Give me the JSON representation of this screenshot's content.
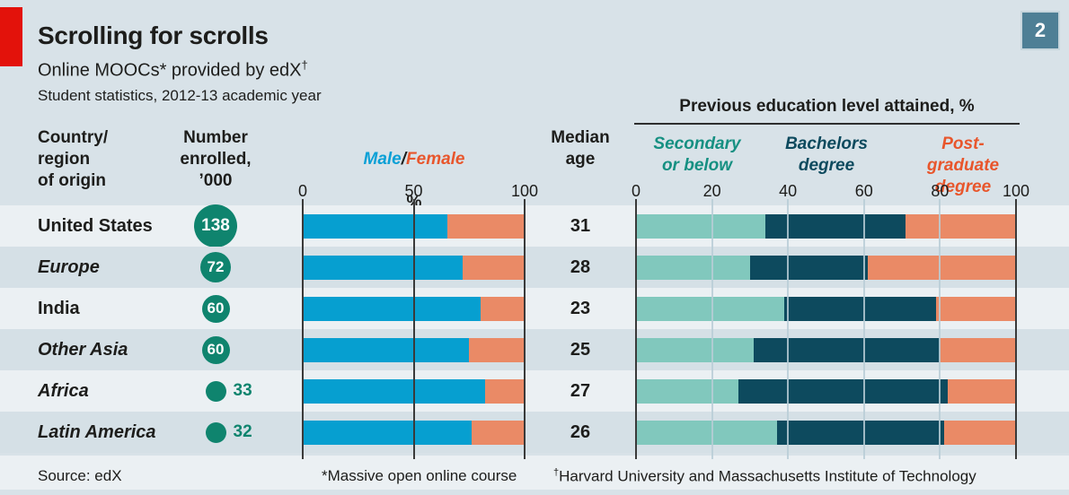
{
  "badge": "2",
  "title": "Scrolling for scrolls",
  "subtitle": {
    "text": "Online MOOCs* provided by edX",
    "sup": "†"
  },
  "dateline": "Student statistics, 2012-13 academic year",
  "columns": {
    "country": "Country/\nregion\nof origin",
    "enrolled": "Number\nenrolled,\n’000",
    "male_label": "Male",
    "slash": "/",
    "female_label": "Female",
    "mf_unit": "%",
    "median": "Median\nage",
    "education_header": "Previous education level attained, %",
    "legend": [
      {
        "label": "Secondary\nor below",
        "color": "#169082"
      },
      {
        "label": "Bachelors\ndegree",
        "color": "#0d4a5e"
      },
      {
        "label": "Post-graduate\ndegree",
        "color": "#e8562c"
      }
    ]
  },
  "footer": {
    "source": "Source: edX",
    "note1": "*Massive open online course",
    "note2_sup": "†",
    "note2": "Harvard University and Massachusetts Institute of Technology"
  },
  "colors": {
    "page_bg": "#d8e2e8",
    "row_light": "#ebf0f3",
    "row_dark": "#d5e0e6",
    "accent_red": "#e3120b",
    "badge_bg": "#4e7f95",
    "male": "#069fd0",
    "female": "#ea8a66",
    "secondary": "#81c8bd",
    "bachelors": "#0d4a5e",
    "postgraduate": "#ea8a66",
    "bubble": "#0f846e",
    "male_text": "#0aa0d6",
    "female_text": "#e8562c",
    "gridline": "#b9cdd6"
  },
  "chart_data": {
    "type": "bar",
    "title": "Scrolling for scrolls",
    "subtitle": "Online MOOCs* provided by edX†",
    "note": "Student statistics, 2012-13 academic year",
    "categories": [
      "United States",
      "Europe",
      "India",
      "Other Asia",
      "Africa",
      "Latin America"
    ],
    "italic_categories": [
      false,
      true,
      false,
      true,
      true,
      true
    ],
    "enrolled_thousands": [
      138,
      72,
      60,
      60,
      33,
      32
    ],
    "enrolled_label_outside": [
      false,
      false,
      false,
      false,
      true,
      true
    ],
    "median_age": [
      31,
      28,
      23,
      25,
      27,
      26
    ],
    "series": [
      {
        "name": "Male %",
        "values": [
          65,
          72,
          80,
          75,
          82,
          76
        ]
      },
      {
        "name": "Female %",
        "values": [
          35,
          28,
          20,
          25,
          18,
          24
        ]
      },
      {
        "name": "Secondary or below %",
        "values": [
          34,
          30,
          39,
          31,
          27,
          37
        ]
      },
      {
        "name": "Bachelors degree %",
        "values": [
          37,
          31,
          40,
          49,
          55,
          44
        ]
      },
      {
        "name": "Post-graduate degree %",
        "values": [
          29,
          39,
          21,
          20,
          18,
          19
        ]
      }
    ],
    "axes": {
      "male_female_ticks": [
        0,
        50,
        100
      ],
      "education_ticks": [
        0,
        20,
        40,
        60,
        80,
        100
      ],
      "xlim": [
        0,
        100
      ],
      "grid": true,
      "legend_position": "top-right"
    }
  }
}
